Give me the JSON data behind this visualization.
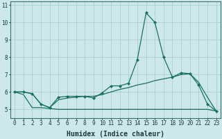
{
  "xlabel": "Humidex (Indice chaleur)",
  "background_color": "#cce8e8",
  "grid_color": "#aacece",
  "line_color": "#1a7060",
  "x_hours": [
    0,
    1,
    2,
    3,
    4,
    5,
    6,
    7,
    8,
    9,
    10,
    11,
    12,
    13,
    14,
    15,
    16,
    17,
    18,
    19,
    20,
    21,
    22,
    23
  ],
  "line_main_y": [
    6.0,
    6.0,
    5.9,
    5.3,
    5.1,
    5.7,
    5.75,
    5.75,
    5.75,
    5.65,
    5.95,
    6.35,
    6.35,
    6.5,
    7.85,
    10.55,
    10.0,
    8.0,
    6.85,
    7.1,
    7.05,
    6.4,
    5.3,
    4.9
  ],
  "line_flat_y": [
    6.0,
    5.85,
    5.1,
    5.1,
    5.05,
    5.0,
    5.0,
    5.0,
    5.0,
    5.0,
    5.0,
    5.0,
    5.0,
    5.0,
    5.0,
    5.0,
    5.0,
    5.0,
    5.0,
    5.0,
    5.0,
    5.0,
    5.0,
    4.9
  ],
  "line_trend_y": [
    6.0,
    6.0,
    5.9,
    5.3,
    5.1,
    5.55,
    5.65,
    5.7,
    5.75,
    5.75,
    5.85,
    6.0,
    6.15,
    6.25,
    6.4,
    6.5,
    6.65,
    6.75,
    6.85,
    7.0,
    7.05,
    6.55,
    5.7,
    4.9
  ],
  "ylim": [
    4.5,
    11.2
  ],
  "yticks": [
    5,
    6,
    7,
    8,
    9,
    10,
    11
  ],
  "xlim": [
    -0.5,
    23.5
  ],
  "xlabel_fontsize": 7,
  "tick_fontsize": 5.5
}
